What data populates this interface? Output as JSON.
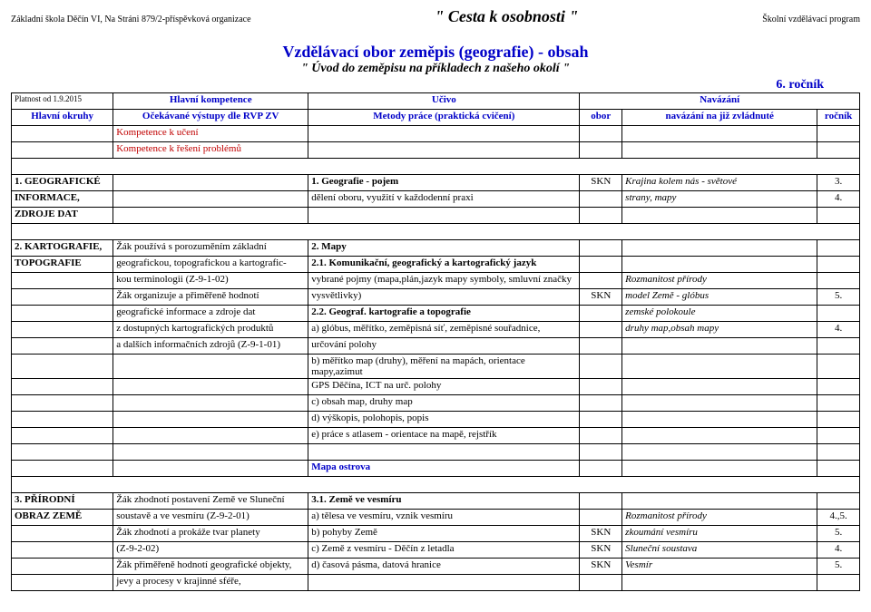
{
  "header": {
    "left": "Základní škola Děčín VI, Na Stráni 879/2-příspěvková organizace",
    "center": "\" Cesta k osobnosti \"",
    "right": "Školní vzdělávací program"
  },
  "title": {
    "main": "Vzdělávací obor zeměpis (geografie) - obsah",
    "sub": "\" Úvod do zeměpisu na příkladech z našeho okolí \"",
    "grade": "6. ročník"
  },
  "validity": "Platnost od 1.9.2015",
  "colhead": {
    "kompetence": "Hlavní kompetence",
    "ucivo": "Učivo",
    "navazani": "Navázání",
    "okruhy": "Hlavní okruhy",
    "vystupy": "Očekávané výstupy dle RVP ZV",
    "metody": "Metody práce (praktická cvičení)",
    "obor": "obor",
    "jiz": "navázání na již zvládnuté",
    "rocnik": "ročník"
  },
  "komp": {
    "uceni": "Kompetence k učení",
    "reseni": "Kompetence k řešení problémů"
  },
  "sec1": {
    "num": "1. GEOGRAFICKÉ",
    "sub1": "INFORMACE,",
    "sub2": "ZDROJE DAT",
    "c1": "1. Geografie - pojem",
    "c2": "dělení oboru, využití v každodenní praxi",
    "d1": "SKN",
    "e1": "Krajina kolem nás - světové",
    "e2": "strany, mapy",
    "f1": "3.",
    "f2": "4."
  },
  "sec2": {
    "num": "2. KARTOGRAFIE,",
    "sub": "TOPOGRAFIE",
    "b1": "Žák používá s porozuměním základní",
    "b2": "geografickou, topografickou a kartografic-",
    "b3": "kou terminologii (Z-9-1-02)",
    "b4": "Žák organizuje a přiměřeně hodnotí",
    "b5": " geografické informace a zdroje dat",
    "b6": "z dostupných kartografických produktů",
    "b7": "a dalších informačních zdrojů (Z-9-1-01)",
    "c1": "2. Mapy",
    "c2": "2.1. Komunikační, geografický a kartografický jazyk",
    "c3": "vybrané pojmy (mapa,plán,jazyk mapy symboly, smluvní značky",
    "c4": "vysvětlivky)",
    "c5": "2.2. Geograf. kartografie a topografie",
    "c6": "a) glóbus, měřítko, zeměpisná síť, zeměpisné souřadnice,",
    "c7": "určování polohy",
    "c8": "b) měřítko map (druhy), měření na mapách, orientace mapy,azimut",
    "c9": "GPS Děčína, ICT na urč. polohy",
    "c10": "c) obsah map, druhy map",
    "c11": "d) výškopis, polohopis, popis",
    "c12": "e) práce s atlasem - orientace na mapě, rejstřík",
    "mapa": "Mapa ostrova",
    "e3": "Rozmanitost přírody",
    "e4": "model Země - glóbus",
    "e5": "zemské polokoule",
    "e6": "druhy map,obsah mapy",
    "d4": "SKN",
    "f4": "5.",
    "f6": "4."
  },
  "sec3": {
    "num": "3. PŘÍRODNÍ",
    "sub": "OBRAZ ZEMĚ",
    "b1": "Žák zhodnotí postavení Země ve Sluneční",
    "b2": "soustavě a ve vesmíru (Z-9-2-01)",
    "b3": "Žák  zhodnotí a prokáže tvar planety",
    "b4": "(Z-9-2-02)",
    "b5": "Žák přiměřeně hodnotí geografické objekty,",
    "b6": " jevy a procesy v krajinné sféře,",
    "c1": "3.1. Země ve vesmíru",
    "c2": "a) tělesa ve vesmíru, vznik vesmíru",
    "c3": "b) pohyby Země",
    "c4": "c) Země z vesmíru - Děčín z letadla",
    "c5": "d) časová pásma, datová hranice",
    "d3": "SKN",
    "d4": "SKN",
    "d5": "SKN",
    "e2": "Rozmanitost přírody",
    "e3": "zkoumání vesmíru",
    "e4": "Sluneční soustava",
    "e5": "Vesmír",
    "f2": "4.,5.",
    "f3": "5.",
    "f4": "4.",
    "f5": "5."
  }
}
